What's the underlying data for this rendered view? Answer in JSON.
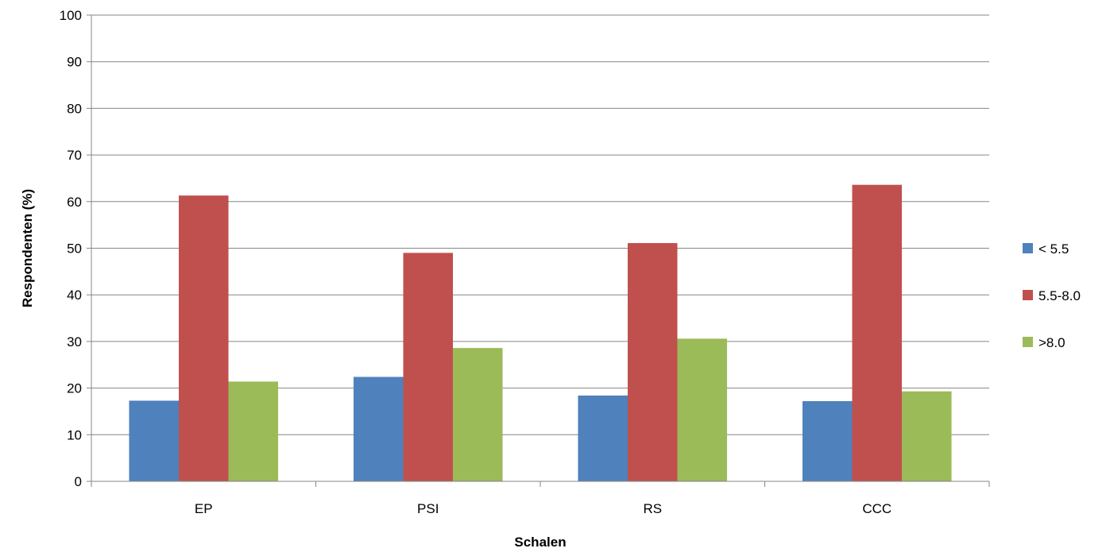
{
  "chart_data": {
    "type": "bar",
    "categories": [
      "EP",
      "PSI",
      "RS",
      "CCC"
    ],
    "series": [
      {
        "name": "< 5.5",
        "values": [
          17.3,
          22.4,
          18.4,
          17.2
        ],
        "color": "#4F81BD"
      },
      {
        "name": "5.5-8.0",
        "values": [
          61.3,
          49.0,
          51.1,
          63.6
        ],
        "color": "#C0504D"
      },
      {
        "name": ">8.0",
        "values": [
          21.4,
          28.6,
          30.6,
          19.3
        ],
        "color": "#9BBB59"
      }
    ],
    "xlabel": "Schalen",
    "ylabel": "Respondenten (%)",
    "ylim": [
      0,
      100
    ],
    "yticks": [
      "0",
      "10",
      "20",
      "30",
      "40",
      "50",
      "60",
      "70",
      "80",
      "90",
      "100"
    ],
    "grid": true,
    "legend_position": "right",
    "colors": {
      "gridline": "#868686",
      "axis": "#868686"
    }
  }
}
